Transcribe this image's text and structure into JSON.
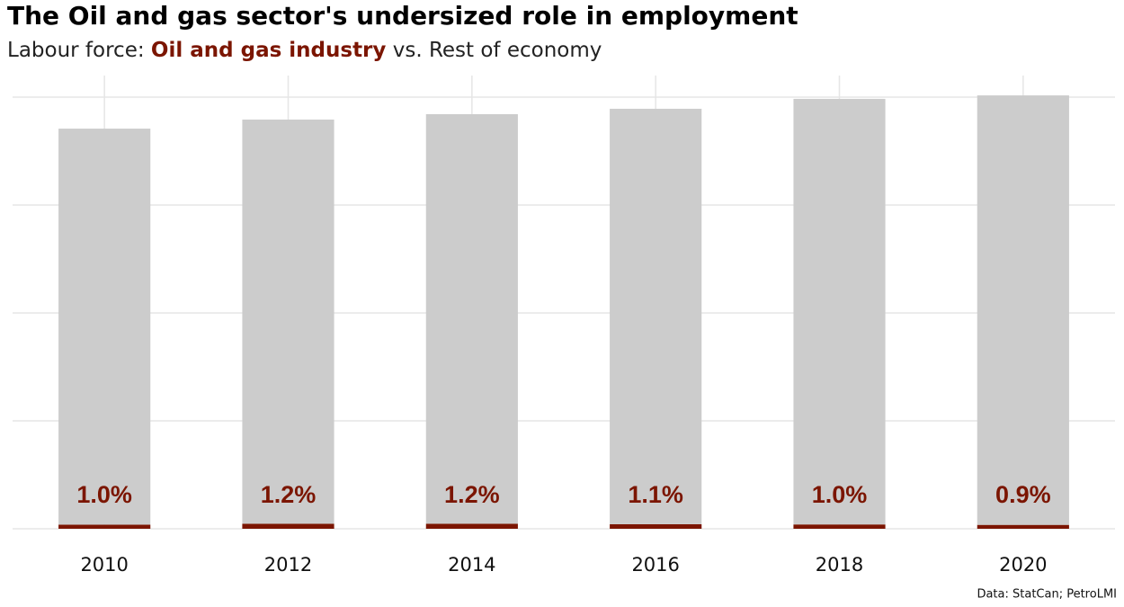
{
  "chart_data": {
    "type": "stacked-bar",
    "title": "The Oil and gas sector's undersized role in employment",
    "subtitle_prefix": "Labour force:",
    "subtitle_joiner": "vs.",
    "caption": "Data: StatCan; PetroLMI",
    "categories": [
      "2010",
      "2012",
      "2014",
      "2016",
      "2018",
      "2020"
    ],
    "series": [
      {
        "name": "Oil and gas industry",
        "color": "#7b1500",
        "values": [
          0.19,
          0.23,
          0.23,
          0.21,
          0.2,
          0.18
        ]
      },
      {
        "name": "Rest of economy",
        "color": "#cccccc",
        "values": [
          18.35,
          18.73,
          18.98,
          19.25,
          19.72,
          19.9
        ]
      }
    ],
    "share_labels": [
      "1.0%",
      "1.2%",
      "1.2%",
      "1.1%",
      "1.0%",
      "0.9%"
    ],
    "ylim": [
      0,
      21
    ],
    "yticks": [
      0,
      5,
      10,
      15,
      20
    ],
    "grid": true
  }
}
